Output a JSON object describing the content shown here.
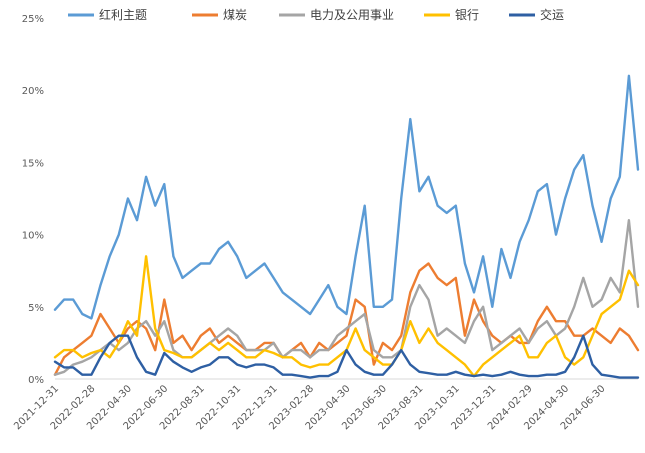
{
  "chart_data": {
    "type": "line",
    "title": "",
    "xlabel": "",
    "ylabel": "",
    "ylim": [
      0,
      25
    ],
    "y_ticks": [
      "0%",
      "5%",
      "10%",
      "15%",
      "20%",
      "25%"
    ],
    "y_tick_values": [
      0,
      5,
      10,
      15,
      20,
      25
    ],
    "x_ticks": [
      "2021-12-31",
      "2022-02-28",
      "2022-04-30",
      "2022-06-30",
      "2022-08-31",
      "2022-10-31",
      "2022-12-31",
      "2023-02-28",
      "2023-04-30",
      "2023-06-30",
      "2023-08-31",
      "2023-10-31",
      "2023-12-31",
      "2024-02-29",
      "2024-04-30",
      "2024-06-30"
    ],
    "x_tick_index": [
      0,
      2,
      4,
      6,
      8,
      10,
      12,
      14,
      16,
      18,
      20,
      22,
      24,
      26,
      28,
      30
    ],
    "x_range": [
      0,
      32
    ],
    "grid": false,
    "legend_position": "top",
    "series": [
      {
        "name": "红利主题",
        "color": "#5b9bd5",
        "x": [
          0,
          0.5,
          1,
          1.5,
          2,
          2.5,
          3,
          3.5,
          4,
          4.5,
          5,
          5.5,
          6,
          6.5,
          7,
          7.5,
          8,
          8.5,
          9,
          9.5,
          10,
          10.5,
          11,
          11.5,
          12,
          12.5,
          13,
          13.5,
          14,
          14.5,
          15,
          15.5,
          16,
          16.5,
          17,
          17.5,
          18,
          18.5,
          19,
          19.5,
          20,
          20.5,
          21,
          21.5,
          22,
          22.5,
          23,
          23.5,
          24,
          24.5,
          25,
          25.5,
          26,
          26.5,
          27,
          27.5,
          28,
          28.5,
          29,
          29.5,
          30,
          30.5,
          31,
          31.5,
          32
        ],
        "values": [
          4.8,
          5.5,
          5.5,
          4.5,
          4.2,
          6.5,
          8.5,
          10.0,
          12.5,
          11.0,
          14.0,
          12.0,
          13.5,
          8.5,
          7.0,
          7.5,
          8.0,
          8.0,
          9.0,
          9.5,
          8.5,
          7.0,
          7.5,
          8.0,
          7.0,
          6.0,
          5.5,
          5.0,
          4.5,
          5.5,
          6.5,
          5.0,
          4.5,
          8.5,
          12.0,
          5.0,
          5.0,
          5.5,
          12.5,
          18.0,
          13.0,
          14.0,
          12.0,
          11.5,
          12.0,
          8.0,
          6.0,
          8.5,
          5.0,
          9.0,
          7.0,
          9.5,
          11.0,
          13.0,
          13.5,
          10.0,
          12.5,
          14.5,
          15.5,
          12.0,
          9.5,
          12.5,
          14.0,
          21.0,
          14.5
        ]
      },
      {
        "name": "煤炭",
        "color": "#ed7d31",
        "x": [
          0,
          0.5,
          1,
          1.5,
          2,
          2.5,
          3,
          3.5,
          4,
          4.5,
          5,
          5.5,
          6,
          6.5,
          7,
          7.5,
          8,
          8.5,
          9,
          9.5,
          10,
          10.5,
          11,
          11.5,
          12,
          12.5,
          13,
          13.5,
          14,
          14.5,
          15,
          15.5,
          16,
          16.5,
          17,
          17.5,
          18,
          18.5,
          19,
          19.5,
          20,
          20.5,
          21,
          21.5,
          22,
          22.5,
          23,
          23.5,
          24,
          24.5,
          25,
          25.5,
          26,
          26.5,
          27,
          27.5,
          28,
          28.5,
          29,
          29.5,
          30,
          30.5,
          31,
          31.5,
          32
        ],
        "values": [
          0.3,
          1.5,
          2.0,
          2.5,
          3.0,
          4.5,
          3.5,
          2.5,
          3.5,
          4.0,
          3.5,
          2.0,
          5.5,
          2.5,
          3.0,
          2.0,
          3.0,
          3.5,
          2.5,
          3.0,
          2.5,
          2.0,
          2.0,
          2.5,
          2.5,
          1.5,
          2.0,
          2.5,
          1.5,
          2.5,
          2.0,
          2.5,
          3.0,
          5.5,
          5.0,
          1.0,
          2.5,
          2.0,
          3.0,
          6.0,
          7.5,
          8.0,
          7.0,
          6.5,
          7.0,
          3.0,
          5.5,
          4.0,
          3.0,
          2.5,
          3.0,
          2.5,
          2.5,
          4.0,
          5.0,
          4.0,
          4.0,
          3.0,
          3.0,
          3.5,
          3.0,
          2.5,
          3.5,
          3.0,
          2.0
        ]
      },
      {
        "name": "电力及公用事业",
        "color": "#a5a5a5",
        "x": [
          0,
          0.5,
          1,
          1.5,
          2,
          2.5,
          3,
          3.5,
          4,
          4.5,
          5,
          5.5,
          6,
          6.5,
          7,
          7.5,
          8,
          8.5,
          9,
          9.5,
          10,
          10.5,
          11,
          11.5,
          12,
          12.5,
          13,
          13.5,
          14,
          14.5,
          15,
          15.5,
          16,
          16.5,
          17,
          17.5,
          18,
          18.5,
          19,
          19.5,
          20,
          20.5,
          21,
          21.5,
          22,
          22.5,
          23,
          23.5,
          24,
          24.5,
          25,
          25.5,
          26,
          26.5,
          27,
          27.5,
          28,
          28.5,
          29,
          29.5,
          30,
          30.5,
          31,
          31.5,
          32
        ],
        "values": [
          0.3,
          0.5,
          1.0,
          1.2,
          1.5,
          2.0,
          2.5,
          2.0,
          2.5,
          3.5,
          4.0,
          3.0,
          4.0,
          2.0,
          1.5,
          1.5,
          2.0,
          2.5,
          3.0,
          3.5,
          3.0,
          2.0,
          2.0,
          2.0,
          2.5,
          1.5,
          2.0,
          2.0,
          1.5,
          2.0,
          2.0,
          3.0,
          3.5,
          4.0,
          4.5,
          2.0,
          1.5,
          1.5,
          2.0,
          5.0,
          6.5,
          5.5,
          3.0,
          3.5,
          3.0,
          2.5,
          4.0,
          5.0,
          2.0,
          2.5,
          3.0,
          3.5,
          2.5,
          3.5,
          4.0,
          3.0,
          3.5,
          5.0,
          7.0,
          5.0,
          5.5,
          7.0,
          6.0,
          11.0,
          5.0
        ]
      },
      {
        "name": "银行",
        "color": "#ffc000",
        "x": [
          0,
          0.5,
          1,
          1.5,
          2,
          2.5,
          3,
          3.5,
          4,
          4.5,
          5,
          5.5,
          6,
          6.5,
          7,
          7.5,
          8,
          8.5,
          9,
          9.5,
          10,
          10.5,
          11,
          11.5,
          12,
          12.5,
          13,
          13.5,
          14,
          14.5,
          15,
          15.5,
          16,
          16.5,
          17,
          17.5,
          18,
          18.5,
          19,
          19.5,
          20,
          20.5,
          21,
          21.5,
          22,
          22.5,
          23,
          23.5,
          24,
          24.5,
          25,
          25.5,
          26,
          26.5,
          27,
          27.5,
          28,
          28.5,
          29,
          29.5,
          30,
          30.5,
          31,
          31.5,
          32
        ],
        "values": [
          1.5,
          2.0,
          2.0,
          1.5,
          1.8,
          2.0,
          1.5,
          2.5,
          4.0,
          3.0,
          8.5,
          3.5,
          2.0,
          1.8,
          1.5,
          1.5,
          2.0,
          2.5,
          2.0,
          2.5,
          2.0,
          1.5,
          1.5,
          2.0,
          1.8,
          1.5,
          1.5,
          1.0,
          0.8,
          1.0,
          1.0,
          1.5,
          2.0,
          3.5,
          2.0,
          1.5,
          1.0,
          1.0,
          2.0,
          4.0,
          2.5,
          3.5,
          2.5,
          2.0,
          1.5,
          1.0,
          0.2,
          1.0,
          1.5,
          2.0,
          2.5,
          3.0,
          1.5,
          1.5,
          2.5,
          3.0,
          1.5,
          1.0,
          1.5,
          3.0,
          4.5,
          5.0,
          5.5,
          7.5,
          6.5
        ]
      },
      {
        "name": "交运",
        "color": "#2e5fa3",
        "x": [
          0,
          0.5,
          1,
          1.5,
          2,
          2.5,
          3,
          3.5,
          4,
          4.5,
          5,
          5.5,
          6,
          6.5,
          7,
          7.5,
          8,
          8.5,
          9,
          9.5,
          10,
          10.5,
          11,
          11.5,
          12,
          12.5,
          13,
          13.5,
          14,
          14.5,
          15,
          15.5,
          16,
          16.5,
          17,
          17.5,
          18,
          18.5,
          19,
          19.5,
          20,
          20.5,
          21,
          21.5,
          22,
          22.5,
          23,
          23.5,
          24,
          24.5,
          25,
          25.5,
          26,
          26.5,
          27,
          27.5,
          28,
          28.5,
          29,
          29.5,
          30,
          30.5,
          31,
          31.5,
          32
        ],
        "values": [
          1.2,
          0.8,
          0.8,
          0.3,
          0.3,
          1.5,
          2.5,
          3.0,
          3.0,
          1.5,
          0.5,
          0.3,
          1.8,
          1.2,
          0.8,
          0.5,
          0.8,
          1.0,
          1.5,
          1.5,
          1.0,
          0.8,
          1.0,
          1.0,
          0.8,
          0.3,
          0.3,
          0.2,
          0.1,
          0.2,
          0.2,
          0.5,
          2.0,
          1.0,
          0.5,
          0.3,
          0.3,
          1.0,
          2.0,
          1.0,
          0.5,
          0.4,
          0.3,
          0.3,
          0.5,
          0.3,
          0.2,
          0.3,
          0.2,
          0.3,
          0.5,
          0.3,
          0.2,
          0.2,
          0.3,
          0.3,
          0.5,
          1.5,
          3.0,
          1.0,
          0.3,
          0.2,
          0.1,
          0.1,
          0.1
        ]
      }
    ]
  }
}
